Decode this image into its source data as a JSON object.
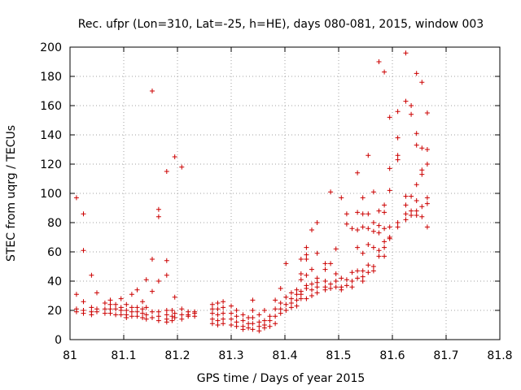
{
  "chart_data": {
    "type": "scatter",
    "title": "Rec. ufpr (Lon=310, Lat=-25, h=HE), days 080-081, 2015, window 003",
    "xlabel": "GPS time / Days of year 2015",
    "ylabel": "STEC from uqrg / TECUs",
    "xlim": [
      81,
      81.8
    ],
    "ylim": [
      0,
      200
    ],
    "xticks": [
      81,
      81.1,
      81.2,
      81.3,
      81.4,
      81.5,
      81.6,
      81.7,
      81.8
    ],
    "xtick_labels": [
      "81",
      "81.1",
      "81.2",
      "81.3",
      "81.4",
      "81.5",
      "81.6",
      "81.7",
      "81.8"
    ],
    "yticks": [
      0,
      20,
      40,
      60,
      80,
      100,
      120,
      140,
      160,
      180,
      200
    ],
    "ytick_labels": [
      "0",
      "20",
      "40",
      "60",
      "80",
      "100",
      "120",
      "140",
      "160",
      "180",
      "200"
    ],
    "grid": true,
    "marker": "+",
    "color": "#cc0000",
    "series": [
      {
        "name": "STEC",
        "points": [
          [
            81.012,
            97
          ],
          [
            81.012,
            31
          ],
          [
            81.012,
            21
          ],
          [
            81.012,
            19
          ],
          [
            81.025,
            86
          ],
          [
            81.025,
            61
          ],
          [
            81.025,
            26
          ],
          [
            81.025,
            20
          ],
          [
            81.025,
            18
          ],
          [
            81.04,
            44
          ],
          [
            81.04,
            22
          ],
          [
            81.04,
            19
          ],
          [
            81.04,
            17
          ],
          [
            81.05,
            32
          ],
          [
            81.05,
            21
          ],
          [
            81.05,
            19
          ],
          [
            81.065,
            25
          ],
          [
            81.065,
            21
          ],
          [
            81.065,
            18
          ],
          [
            81.075,
            27
          ],
          [
            81.075,
            24
          ],
          [
            81.075,
            21
          ],
          [
            81.075,
            18
          ],
          [
            81.085,
            24
          ],
          [
            81.085,
            21
          ],
          [
            81.085,
            17
          ],
          [
            81.095,
            28
          ],
          [
            81.095,
            22
          ],
          [
            81.095,
            20
          ],
          [
            81.095,
            17
          ],
          [
            81.105,
            24
          ],
          [
            81.105,
            20
          ],
          [
            81.105,
            17
          ],
          [
            81.105,
            15
          ],
          [
            81.115,
            31
          ],
          [
            81.115,
            22
          ],
          [
            81.115,
            19
          ],
          [
            81.115,
            16
          ],
          [
            81.125,
            34
          ],
          [
            81.125,
            22
          ],
          [
            81.125,
            19
          ],
          [
            81.125,
            16
          ],
          [
            81.135,
            26
          ],
          [
            81.135,
            21
          ],
          [
            81.135,
            18
          ],
          [
            81.135,
            15
          ],
          [
            81.142,
            41
          ],
          [
            81.142,
            22
          ],
          [
            81.142,
            17
          ],
          [
            81.142,
            14
          ],
          [
            81.153,
            170
          ],
          [
            81.153,
            55
          ],
          [
            81.153,
            33
          ],
          [
            81.153,
            19
          ],
          [
            81.153,
            15
          ],
          [
            81.165,
            89
          ],
          [
            81.165,
            84
          ],
          [
            81.165,
            40
          ],
          [
            81.165,
            19
          ],
          [
            81.165,
            16
          ],
          [
            81.165,
            13
          ],
          [
            81.18,
            115
          ],
          [
            81.18,
            54
          ],
          [
            81.18,
            44
          ],
          [
            81.18,
            20
          ],
          [
            81.18,
            17
          ],
          [
            81.18,
            14
          ],
          [
            81.18,
            12
          ],
          [
            81.19,
            20
          ],
          [
            81.19,
            16
          ],
          [
            81.19,
            13
          ],
          [
            81.195,
            125
          ],
          [
            81.195,
            29
          ],
          [
            81.195,
            18
          ],
          [
            81.195,
            15
          ],
          [
            81.208,
            118
          ],
          [
            81.208,
            21
          ],
          [
            81.208,
            17
          ],
          [
            81.208,
            14
          ],
          [
            81.22,
            19
          ],
          [
            81.22,
            17
          ],
          [
            81.22,
            16
          ],
          [
            81.232,
            19
          ],
          [
            81.232,
            18
          ],
          [
            81.232,
            16
          ],
          [
            81.265,
            24
          ],
          [
            81.265,
            21
          ],
          [
            81.265,
            18
          ],
          [
            81.265,
            14
          ],
          [
            81.265,
            11
          ],
          [
            81.275,
            25
          ],
          [
            81.275,
            21
          ],
          [
            81.275,
            17
          ],
          [
            81.275,
            13
          ],
          [
            81.275,
            10
          ],
          [
            81.285,
            26
          ],
          [
            81.285,
            22
          ],
          [
            81.285,
            18
          ],
          [
            81.285,
            14
          ],
          [
            81.285,
            11
          ],
          [
            81.3,
            23
          ],
          [
            81.3,
            18
          ],
          [
            81.3,
            14
          ],
          [
            81.3,
            10
          ],
          [
            81.31,
            20
          ],
          [
            81.31,
            16
          ],
          [
            81.31,
            12
          ],
          [
            81.31,
            9
          ],
          [
            81.322,
            17
          ],
          [
            81.322,
            13
          ],
          [
            81.322,
            9
          ],
          [
            81.322,
            7
          ],
          [
            81.332,
            15
          ],
          [
            81.332,
            11
          ],
          [
            81.332,
            8
          ],
          [
            81.34,
            27
          ],
          [
            81.34,
            20
          ],
          [
            81.34,
            15
          ],
          [
            81.34,
            11
          ],
          [
            81.34,
            7
          ],
          [
            81.352,
            17
          ],
          [
            81.352,
            12
          ],
          [
            81.352,
            9
          ],
          [
            81.352,
            6
          ],
          [
            81.362,
            20
          ],
          [
            81.362,
            13
          ],
          [
            81.362,
            10
          ],
          [
            81.362,
            8
          ],
          [
            81.372,
            16
          ],
          [
            81.372,
            13
          ],
          [
            81.372,
            9
          ],
          [
            81.382,
            27
          ],
          [
            81.382,
            21
          ],
          [
            81.382,
            16
          ],
          [
            81.382,
            11
          ],
          [
            81.392,
            35
          ],
          [
            81.392,
            25
          ],
          [
            81.392,
            21
          ],
          [
            81.392,
            18
          ],
          [
            81.402,
            52
          ],
          [
            81.402,
            29
          ],
          [
            81.402,
            24
          ],
          [
            81.402,
            20
          ],
          [
            81.412,
            32
          ],
          [
            81.412,
            28
          ],
          [
            81.412,
            25
          ],
          [
            81.412,
            22
          ],
          [
            81.422,
            34
          ],
          [
            81.422,
            31
          ],
          [
            81.422,
            27
          ],
          [
            81.422,
            23
          ],
          [
            81.43,
            55
          ],
          [
            81.43,
            45
          ],
          [
            81.43,
            41
          ],
          [
            81.43,
            33
          ],
          [
            81.43,
            31
          ],
          [
            81.43,
            28
          ],
          [
            81.44,
            63
          ],
          [
            81.44,
            58
          ],
          [
            81.44,
            55
          ],
          [
            81.44,
            44
          ],
          [
            81.44,
            37
          ],
          [
            81.44,
            35
          ],
          [
            81.44,
            28
          ],
          [
            81.45,
            75
          ],
          [
            81.45,
            48
          ],
          [
            81.45,
            38
          ],
          [
            81.45,
            34
          ],
          [
            81.45,
            30
          ],
          [
            81.46,
            80
          ],
          [
            81.46,
            59
          ],
          [
            81.46,
            42
          ],
          [
            81.46,
            39
          ],
          [
            81.46,
            36
          ],
          [
            81.46,
            32
          ],
          [
            81.475,
            52
          ],
          [
            81.475,
            48
          ],
          [
            81.475,
            40
          ],
          [
            81.475,
            36
          ],
          [
            81.475,
            34
          ],
          [
            81.485,
            101
          ],
          [
            81.485,
            52
          ],
          [
            81.485,
            38
          ],
          [
            81.485,
            35
          ],
          [
            81.495,
            62
          ],
          [
            81.495,
            45
          ],
          [
            81.495,
            40
          ],
          [
            81.495,
            36
          ],
          [
            81.505,
            97
          ],
          [
            81.505,
            42
          ],
          [
            81.505,
            36
          ],
          [
            81.505,
            34
          ],
          [
            81.515,
            86
          ],
          [
            81.515,
            79
          ],
          [
            81.515,
            41
          ],
          [
            81.515,
            37
          ],
          [
            81.525,
            76
          ],
          [
            81.525,
            46
          ],
          [
            81.525,
            40
          ],
          [
            81.525,
            36
          ],
          [
            81.535,
            114
          ],
          [
            81.535,
            87
          ],
          [
            81.535,
            75
          ],
          [
            81.535,
            63
          ],
          [
            81.535,
            47
          ],
          [
            81.535,
            42
          ],
          [
            81.545,
            97
          ],
          [
            81.545,
            86
          ],
          [
            81.545,
            77
          ],
          [
            81.545,
            59
          ],
          [
            81.545,
            47
          ],
          [
            81.545,
            43
          ],
          [
            81.545,
            40
          ],
          [
            81.555,
            126
          ],
          [
            81.555,
            86
          ],
          [
            81.555,
            76
          ],
          [
            81.555,
            65
          ],
          [
            81.555,
            51
          ],
          [
            81.555,
            46
          ],
          [
            81.565,
            101
          ],
          [
            81.565,
            80
          ],
          [
            81.565,
            74
          ],
          [
            81.565,
            63
          ],
          [
            81.565,
            50
          ],
          [
            81.565,
            47
          ],
          [
            81.575,
            190
          ],
          [
            81.575,
            88
          ],
          [
            81.575,
            78
          ],
          [
            81.575,
            73
          ],
          [
            81.575,
            61
          ],
          [
            81.575,
            57
          ],
          [
            81.585,
            183
          ],
          [
            81.585,
            92
          ],
          [
            81.585,
            87
          ],
          [
            81.585,
            76
          ],
          [
            81.585,
            67
          ],
          [
            81.585,
            63
          ],
          [
            81.585,
            57
          ],
          [
            81.595,
            152
          ],
          [
            81.595,
            117
          ],
          [
            81.595,
            102
          ],
          [
            81.595,
            77
          ],
          [
            81.595,
            69
          ],
          [
            81.595,
            70
          ],
          [
            81.61,
            156
          ],
          [
            81.61,
            138
          ],
          [
            81.61,
            126
          ],
          [
            81.61,
            123
          ],
          [
            81.61,
            80
          ],
          [
            81.61,
            77
          ],
          [
            81.625,
            196
          ],
          [
            81.625,
            163
          ],
          [
            81.625,
            98
          ],
          [
            81.625,
            92
          ],
          [
            81.625,
            86
          ],
          [
            81.625,
            82
          ],
          [
            81.635,
            160
          ],
          [
            81.635,
            154
          ],
          [
            81.635,
            98
          ],
          [
            81.635,
            88
          ],
          [
            81.635,
            85
          ],
          [
            81.645,
            182
          ],
          [
            81.645,
            141
          ],
          [
            81.645,
            133
          ],
          [
            81.645,
            106
          ],
          [
            81.645,
            95
          ],
          [
            81.645,
            88
          ],
          [
            81.645,
            85
          ],
          [
            81.655,
            176
          ],
          [
            81.655,
            131
          ],
          [
            81.655,
            116
          ],
          [
            81.655,
            113
          ],
          [
            81.655,
            91
          ],
          [
            81.655,
            84
          ],
          [
            81.665,
            155
          ],
          [
            81.665,
            130
          ],
          [
            81.665,
            120
          ],
          [
            81.665,
            97
          ],
          [
            81.665,
            93
          ],
          [
            81.665,
            77
          ]
        ]
      }
    ]
  }
}
